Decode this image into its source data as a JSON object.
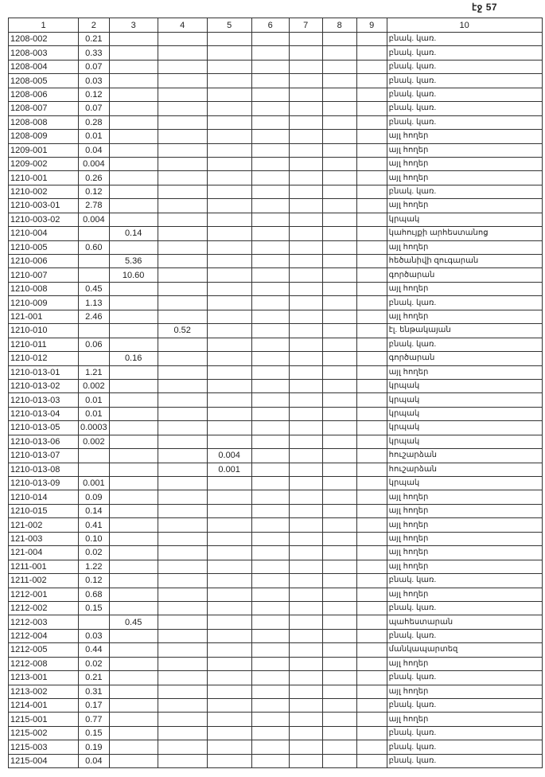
{
  "page_label": "էջ 57",
  "headers": [
    "1",
    "2",
    "3",
    "4",
    "5",
    "6",
    "7",
    "8",
    "9",
    "10"
  ],
  "rows": [
    [
      "1208-002",
      "0.21",
      "",
      "",
      "",
      "",
      "",
      "",
      "",
      "բնակ. կառ."
    ],
    [
      "1208-003",
      "0.33",
      "",
      "",
      "",
      "",
      "",
      "",
      "",
      "բնակ. կառ."
    ],
    [
      "1208-004",
      "0.07",
      "",
      "",
      "",
      "",
      "",
      "",
      "",
      "բնակ. կառ."
    ],
    [
      "1208-005",
      "0.03",
      "",
      "",
      "",
      "",
      "",
      "",
      "",
      "բնակ. կառ."
    ],
    [
      "1208-006",
      "0.12",
      "",
      "",
      "",
      "",
      "",
      "",
      "",
      "բնակ. կառ."
    ],
    [
      "1208-007",
      "0.07",
      "",
      "",
      "",
      "",
      "",
      "",
      "",
      "բնակ. կառ."
    ],
    [
      "1208-008",
      "0.28",
      "",
      "",
      "",
      "",
      "",
      "",
      "",
      "բնակ. կառ."
    ],
    [
      "1208-009",
      "0.01",
      "",
      "",
      "",
      "",
      "",
      "",
      "",
      "այլ հողեր"
    ],
    [
      "1209-001",
      "0.04",
      "",
      "",
      "",
      "",
      "",
      "",
      "",
      "այլ հողեր"
    ],
    [
      "1209-002",
      "0.004",
      "",
      "",
      "",
      "",
      "",
      "",
      "",
      "այլ հողեր"
    ],
    [
      "1210-001",
      "0.26",
      "",
      "",
      "",
      "",
      "",
      "",
      "",
      "այլ հողեր"
    ],
    [
      "1210-002",
      "0.12",
      "",
      "",
      "",
      "",
      "",
      "",
      "",
      "բնակ. կառ."
    ],
    [
      "1210-003-01",
      "2.78",
      "",
      "",
      "",
      "",
      "",
      "",
      "",
      "այլ հողեր"
    ],
    [
      "1210-003-02",
      "0.004",
      "",
      "",
      "",
      "",
      "",
      "",
      "",
      "կրպակ"
    ],
    [
      "1210-004",
      "",
      "0.14",
      "",
      "",
      "",
      "",
      "",
      "",
      "կահույքի արհեստանոց"
    ],
    [
      "1210-005",
      "0.60",
      "",
      "",
      "",
      "",
      "",
      "",
      "",
      "այլ հողեր"
    ],
    [
      "1210-006",
      "",
      "5.36",
      "",
      "",
      "",
      "",
      "",
      "",
      "հեծանիվի զուգարան"
    ],
    [
      "1210-007",
      "",
      "10.60",
      "",
      "",
      "",
      "",
      "",
      "",
      "գործարան"
    ],
    [
      "1210-008",
      "0.45",
      "",
      "",
      "",
      "",
      "",
      "",
      "",
      "այլ հողեր"
    ],
    [
      "1210-009",
      "1.13",
      "",
      "",
      "",
      "",
      "",
      "",
      "",
      "բնակ. կառ."
    ],
    [
      "121-001",
      "2.46",
      "",
      "",
      "",
      "",
      "",
      "",
      "",
      "այլ հողեր"
    ],
    [
      "1210-010",
      "",
      "",
      "0.52",
      "",
      "",
      "",
      "",
      "",
      "էլ. ենթակայան"
    ],
    [
      "1210-011",
      "0.06",
      "",
      "",
      "",
      "",
      "",
      "",
      "",
      "բնակ. կառ."
    ],
    [
      "1210-012",
      "",
      "0.16",
      "",
      "",
      "",
      "",
      "",
      "",
      "գործարան"
    ],
    [
      "1210-013-01",
      "1.21",
      "",
      "",
      "",
      "",
      "",
      "",
      "",
      "այլ հողեր"
    ],
    [
      "1210-013-02",
      "0.002",
      "",
      "",
      "",
      "",
      "",
      "",
      "",
      "կրպակ"
    ],
    [
      "1210-013-03",
      "0.01",
      "",
      "",
      "",
      "",
      "",
      "",
      "",
      "կրպակ"
    ],
    [
      "1210-013-04",
      "0.01",
      "",
      "",
      "",
      "",
      "",
      "",
      "",
      "կրպակ"
    ],
    [
      "1210-013-05",
      "0.0003",
      "",
      "",
      "",
      "",
      "",
      "",
      "",
      "կրպակ"
    ],
    [
      "1210-013-06",
      "0.002",
      "",
      "",
      "",
      "",
      "",
      "",
      "",
      "կրպակ"
    ],
    [
      "1210-013-07",
      "",
      "",
      "",
      "0.004",
      "",
      "",
      "",
      "",
      "հուշարձան"
    ],
    [
      "1210-013-08",
      "",
      "",
      "",
      "0.001",
      "",
      "",
      "",
      "",
      "հուշարձան"
    ],
    [
      "1210-013-09",
      "0.001",
      "",
      "",
      "",
      "",
      "",
      "",
      "",
      "կրպակ"
    ],
    [
      "1210-014",
      "0.09",
      "",
      "",
      "",
      "",
      "",
      "",
      "",
      "այլ հողեր"
    ],
    [
      "1210-015",
      "0.14",
      "",
      "",
      "",
      "",
      "",
      "",
      "",
      "այլ հողեր"
    ],
    [
      "121-002",
      "0.41",
      "",
      "",
      "",
      "",
      "",
      "",
      "",
      "այլ հողեր"
    ],
    [
      "121-003",
      "0.10",
      "",
      "",
      "",
      "",
      "",
      "",
      "",
      "այլ հողեր"
    ],
    [
      "121-004",
      "0.02",
      "",
      "",
      "",
      "",
      "",
      "",
      "",
      "այլ հողեր"
    ],
    [
      "1211-001",
      "1.22",
      "",
      "",
      "",
      "",
      "",
      "",
      "",
      "այլ հողեր"
    ],
    [
      "1211-002",
      "0.12",
      "",
      "",
      "",
      "",
      "",
      "",
      "",
      "բնակ. կառ."
    ],
    [
      "1212-001",
      "0.68",
      "",
      "",
      "",
      "",
      "",
      "",
      "",
      "այլ հողեր"
    ],
    [
      "1212-002",
      "0.15",
      "",
      "",
      "",
      "",
      "",
      "",
      "",
      "բնակ. կառ."
    ],
    [
      "1212-003",
      "",
      "0.45",
      "",
      "",
      "",
      "",
      "",
      "",
      "պահեստարան"
    ],
    [
      "1212-004",
      "0.03",
      "",
      "",
      "",
      "",
      "",
      "",
      "",
      "բնակ. կառ."
    ],
    [
      "1212-005",
      "0.44",
      "",
      "",
      "",
      "",
      "",
      "",
      "",
      "մանկապարտեզ"
    ],
    [
      "1212-008",
      "0.02",
      "",
      "",
      "",
      "",
      "",
      "",
      "",
      "այլ հողեր"
    ],
    [
      "1213-001",
      "0.21",
      "",
      "",
      "",
      "",
      "",
      "",
      "",
      "բնակ. կառ."
    ],
    [
      "1213-002",
      "0.31",
      "",
      "",
      "",
      "",
      "",
      "",
      "",
      "այլ հողեր"
    ],
    [
      "1214-001",
      "0.17",
      "",
      "",
      "",
      "",
      "",
      "",
      "",
      "բնակ. կառ."
    ],
    [
      "1215-001",
      "0.77",
      "",
      "",
      "",
      "",
      "",
      "",
      "",
      "այլ հողեր"
    ],
    [
      "1215-002",
      "0.15",
      "",
      "",
      "",
      "",
      "",
      "",
      "",
      "բնակ. կառ."
    ],
    [
      "1215-003",
      "0.19",
      "",
      "",
      "",
      "",
      "",
      "",
      "",
      "բնակ. կառ."
    ],
    [
      "1215-004",
      "0.04",
      "",
      "",
      "",
      "",
      "",
      "",
      "",
      "բնակ. կառ."
    ]
  ]
}
